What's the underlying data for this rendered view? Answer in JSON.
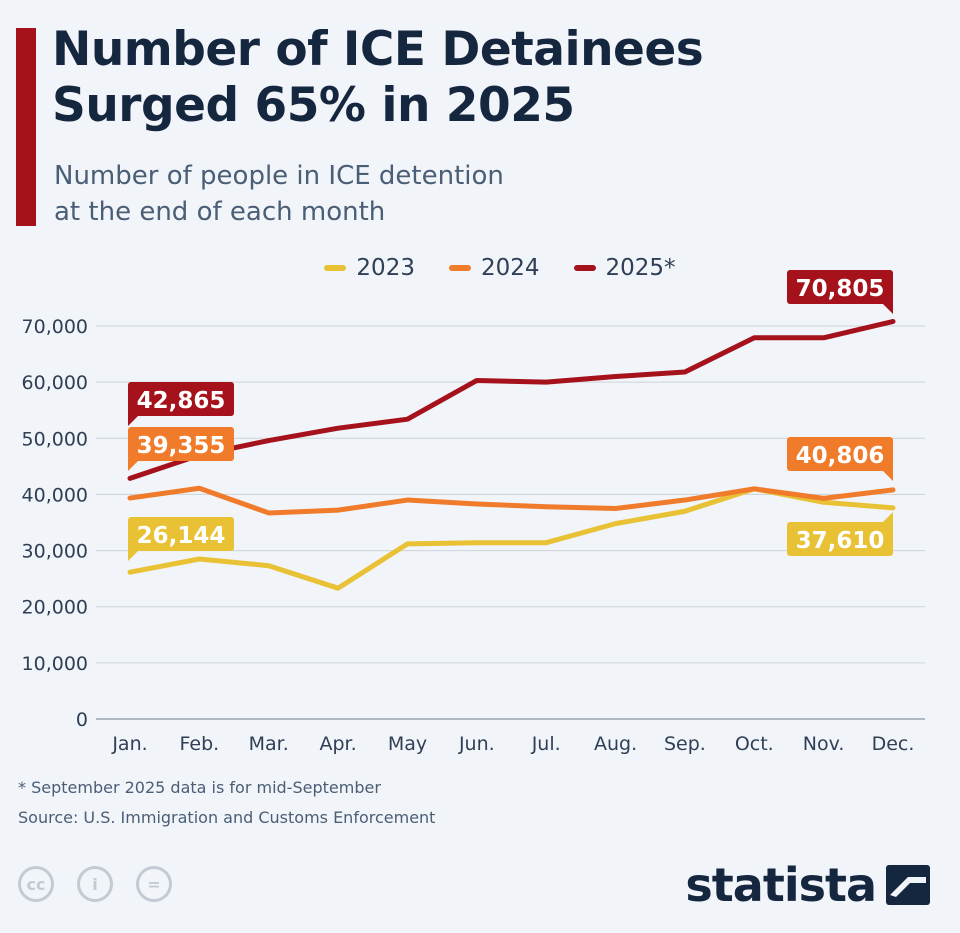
{
  "title_line1": "Number of ICE Detainees",
  "title_line2": "Surged 65% in 2025",
  "subtitle_line1": "Number of people in ICE detention",
  "subtitle_line2": "at the end of each month",
  "footnote": "* September 2025 data is for mid-September",
  "source": "Source: U.S. Immigration and Customs Enforcement",
  "brand": "statista",
  "license_icons": [
    "cc-icon",
    "attribution-icon",
    "no-derivatives-icon"
  ],
  "chart_data": {
    "type": "line",
    "categories": [
      "Jan.",
      "Feb.",
      "Mar.",
      "Apr.",
      "May",
      "Jun.",
      "Jul.",
      "Aug.",
      "Sep.",
      "Oct.",
      "Nov.",
      "Dec."
    ],
    "ylim": [
      0,
      70000
    ],
    "yticks": [
      "0",
      "10,000",
      "20,000",
      "30,000",
      "40,000",
      "50,000",
      "60,000",
      "70,000"
    ],
    "ytick_values": [
      0,
      10000,
      20000,
      30000,
      40000,
      50000,
      60000,
      70000
    ],
    "grid": true,
    "legend_position": "top-center",
    "series": [
      {
        "name": "2023",
        "color": "#e8c234",
        "values": [
          26144,
          28500,
          27300,
          23300,
          31200,
          31400,
          31400,
          34800,
          37000,
          41000,
          38600,
          37610
        ],
        "labels": {
          "first": "26,144",
          "last": "37,610"
        }
      },
      {
        "name": "2024",
        "color": "#f07b2b",
        "values": [
          39355,
          41100,
          36700,
          37200,
          39000,
          38300,
          37800,
          37500,
          39000,
          41000,
          39300,
          40806
        ],
        "labels": {
          "first": "39,355",
          "last": "40,806"
        }
      },
      {
        "name": "2025*",
        "color": "#a5121b",
        "values": [
          42865,
          47000,
          49600,
          51800,
          53400,
          60300,
          60000,
          61000,
          61800,
          67900,
          67900,
          70805
        ],
        "labels": {
          "first": "42,865",
          "last": "70,805"
        }
      }
    ]
  }
}
